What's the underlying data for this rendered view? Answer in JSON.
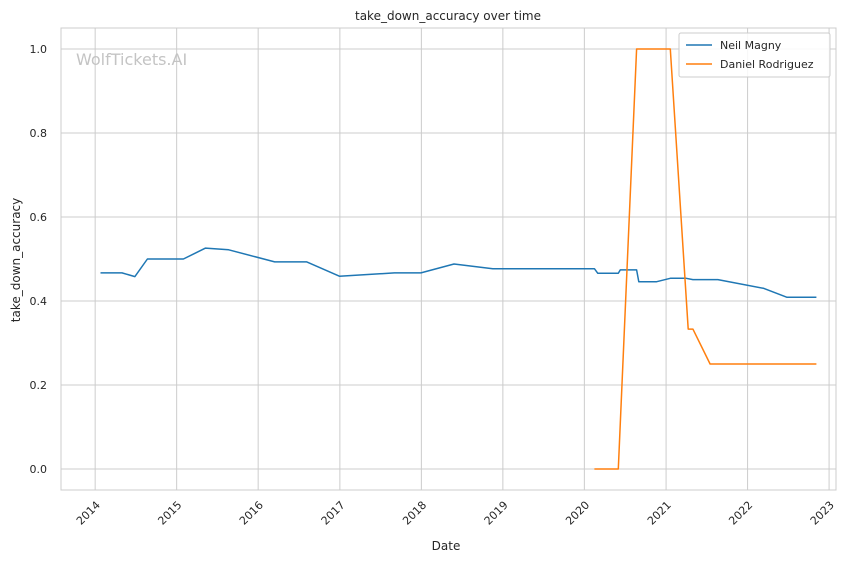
{
  "chart_data": {
    "type": "line",
    "title": "take_down_accuracy over time",
    "xlabel": "Date",
    "ylabel": "take_down_accuracy",
    "watermark": "WolfTickets.AI",
    "xlim": [
      "2013-08-01",
      "2023-02-01"
    ],
    "ylim": [
      -0.05,
      1.05
    ],
    "x_ticks": [
      "2014",
      "2015",
      "2016",
      "2017",
      "2018",
      "2019",
      "2020",
      "2021",
      "2022",
      "2023"
    ],
    "y_ticks": [
      "0.0",
      "0.2",
      "0.4",
      "0.6",
      "0.8",
      "1.0"
    ],
    "y_tick_values": [
      0.0,
      0.2,
      0.4,
      0.6,
      0.8,
      1.0
    ],
    "grid": true,
    "legend_position": "top-right",
    "series": [
      {
        "name": "Neil Magny",
        "color": "#1f77b4",
        "points": [
          [
            "2014-01-25",
            0.467
          ],
          [
            "2014-05-01",
            0.467
          ],
          [
            "2014-06-28",
            0.458
          ],
          [
            "2014-08-23",
            0.5
          ],
          [
            "2015-01-31",
            0.5
          ],
          [
            "2015-05-10",
            0.526
          ],
          [
            "2015-08-22",
            0.522
          ],
          [
            "2016-03-15",
            0.493
          ],
          [
            "2016-08-06",
            0.493
          ],
          [
            "2016-12-30",
            0.459
          ],
          [
            "2017-09-02",
            0.467
          ],
          [
            "2017-12-30",
            0.467
          ],
          [
            "2018-05-27",
            0.488
          ],
          [
            "2018-11-17",
            0.477
          ],
          [
            "2019-04-01",
            0.477
          ],
          [
            "2020-01-01",
            0.477
          ],
          [
            "2020-02-15",
            0.477
          ],
          [
            "2020-03-01",
            0.466
          ],
          [
            "2020-06-01",
            0.466
          ],
          [
            "2020-06-10",
            0.474
          ],
          [
            "2020-08-22",
            0.474
          ],
          [
            "2020-09-01",
            0.446
          ],
          [
            "2020-11-20",
            0.446
          ],
          [
            "2021-01-20",
            0.454
          ],
          [
            "2021-04-01",
            0.454
          ],
          [
            "2021-05-01",
            0.451
          ],
          [
            "2021-08-21",
            0.451
          ],
          [
            "2022-03-15",
            0.43
          ],
          [
            "2022-06-25",
            0.409
          ],
          [
            "2022-11-05",
            0.409
          ]
        ]
      },
      {
        "name": "Daniel Rodriguez",
        "color": "#ff7f0e",
        "points": [
          [
            "2020-02-15",
            0.0
          ],
          [
            "2020-06-01",
            0.0
          ],
          [
            "2020-08-22",
            1.0
          ],
          [
            "2021-01-20",
            1.0
          ],
          [
            "2021-04-10",
            0.333
          ],
          [
            "2021-05-01",
            0.333
          ],
          [
            "2021-07-17",
            0.25
          ],
          [
            "2022-11-05",
            0.25
          ]
        ]
      }
    ]
  }
}
